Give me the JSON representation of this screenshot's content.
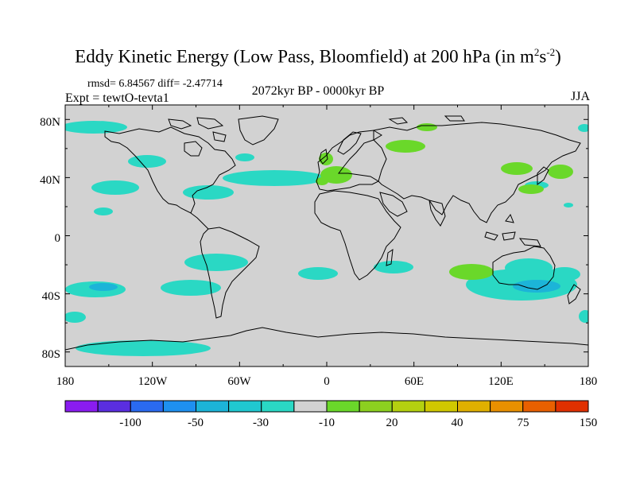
{
  "title": {
    "main": "Eddy Kinetic Energy (Low Pass, Bloomfield) at 200 hPa (in m",
    "sup1": "2",
    "mid": "s",
    "sup2": "-2",
    "end": ")"
  },
  "stats": "rmsd= 6.84567 diff= -2.47714",
  "expt": "Expt = tewtO-tevta1",
  "period": "2072kyr BP - 0000kyr BP",
  "season": "JJA",
  "map": {
    "lat_labels": [
      "80N",
      "40N",
      "0",
      "40S",
      "80S"
    ],
    "lat_values": [
      80,
      40,
      0,
      -40,
      -80
    ],
    "lon_labels": [
      "180",
      "120W",
      "60W",
      "0",
      "60E",
      "120E",
      "180"
    ],
    "lon_values": [
      -180,
      -120,
      -60,
      0,
      60,
      120,
      180
    ],
    "land_color": "#d2d2d2",
    "cool_color": "#2ad8c4",
    "cool_dark": "#1cb4d8",
    "warm_color": "#6ad82a"
  },
  "colorbar": {
    "labels": [
      "-100",
      "-50",
      "-30",
      "-10",
      "20",
      "40",
      "75",
      "150"
    ],
    "colors": [
      "#8a1cf0",
      "#5a2ee0",
      "#2a6af0",
      "#1e90f0",
      "#1cb4d8",
      "#20c8d0",
      "#2ad8c4",
      "#d2d2d2",
      "#6ad82a",
      "#8cd020",
      "#b4d010",
      "#d0c800",
      "#e0b000",
      "#e89000",
      "#e86000",
      "#e03000"
    ]
  }
}
